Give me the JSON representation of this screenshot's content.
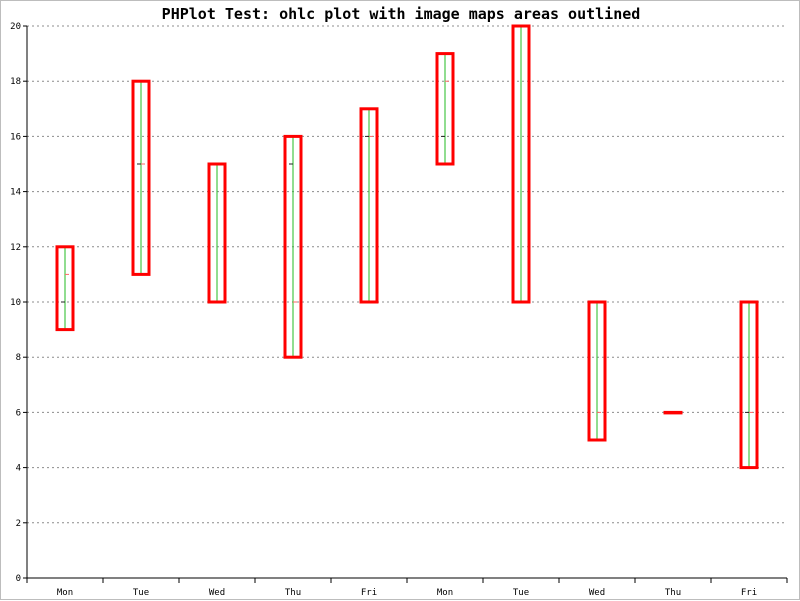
{
  "chart_title": "PHPlot Test: ohlc plot with image maps areas outlined",
  "colors": {
    "background": "#ffffff",
    "axis": "#000000",
    "grid": "#8c8c8c",
    "wick": "#22bb22",
    "open_tick": "#222222",
    "close_tick": "#ff6666",
    "area_outline": "#ff0000"
  },
  "chart_data": {
    "type": "ohlc",
    "title": "PHPlot Test: ohlc plot with image maps areas outlined",
    "xlabel": "",
    "ylabel": "",
    "ylim": [
      0,
      20
    ],
    "yticks": [
      0,
      2,
      4,
      6,
      8,
      10,
      12,
      14,
      16,
      18,
      20
    ],
    "grid": "horizontal dashed",
    "categories": [
      "Mon",
      "Tue",
      "Wed",
      "Thu",
      "Fri",
      "Mon",
      "Tue",
      "Wed",
      "Thu",
      "Fri"
    ],
    "open": [
      10,
      15,
      15,
      15,
      16,
      16,
      10,
      10,
      6,
      6
    ],
    "high": [
      12,
      18,
      15,
      16,
      17,
      19,
      20,
      10,
      6,
      10
    ],
    "low": [
      9,
      11,
      10,
      8,
      10,
      15,
      10,
      5,
      6,
      4
    ],
    "close": [
      11,
      15,
      10,
      10,
      16,
      18,
      20,
      6,
      6,
      6
    ]
  }
}
